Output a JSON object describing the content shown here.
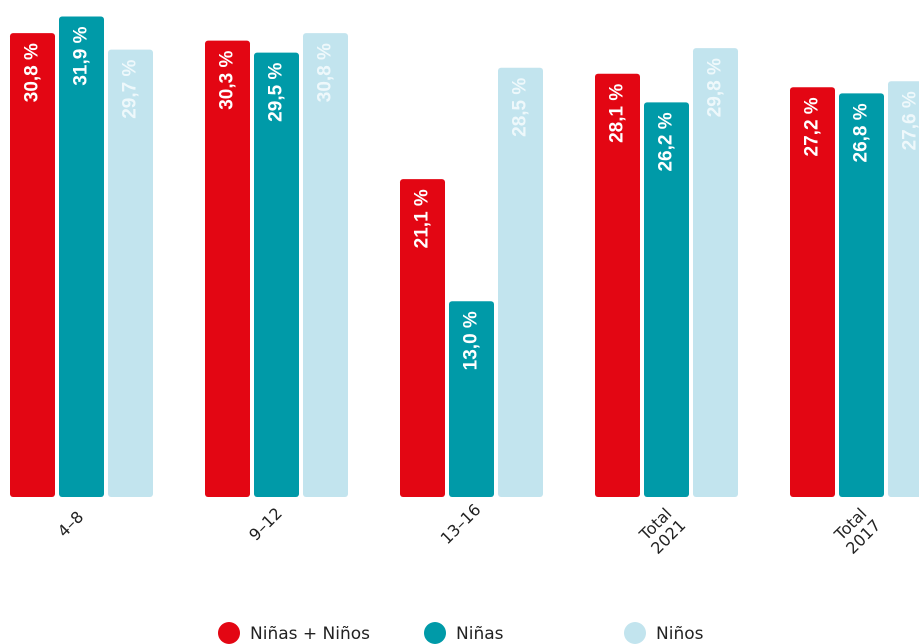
{
  "chart_data": {
    "type": "bar",
    "categories": [
      "4–8",
      "9–12",
      "13–16",
      "Total 2021",
      "Total 2017"
    ],
    "series": [
      {
        "name": "Niñas + Niños",
        "color": "#e30613",
        "values": [
          30.8,
          30.3,
          21.1,
          28.1,
          27.2
        ],
        "value_labels": [
          "30,8 %",
          "30,3 %",
          "21,1 %",
          "28,1 %",
          "27,2 %"
        ]
      },
      {
        "name": "Niñas",
        "color": "#009aa8",
        "values": [
          31.9,
          29.5,
          13.0,
          26.2,
          26.8
        ],
        "value_labels": [
          "31,9 %",
          "29,5 %",
          "13,0 %",
          "26,2 %",
          "26,8 %"
        ]
      },
      {
        "name": "Niños",
        "color": "#c2e4ee",
        "values": [
          29.7,
          30.8,
          28.5,
          29.8,
          27.6
        ],
        "value_labels": [
          "29,7 %",
          "30,8 %",
          "28,5 %",
          "29,8 %",
          "27,6 %"
        ]
      }
    ],
    "ylim": [
      0,
      32
    ]
  }
}
